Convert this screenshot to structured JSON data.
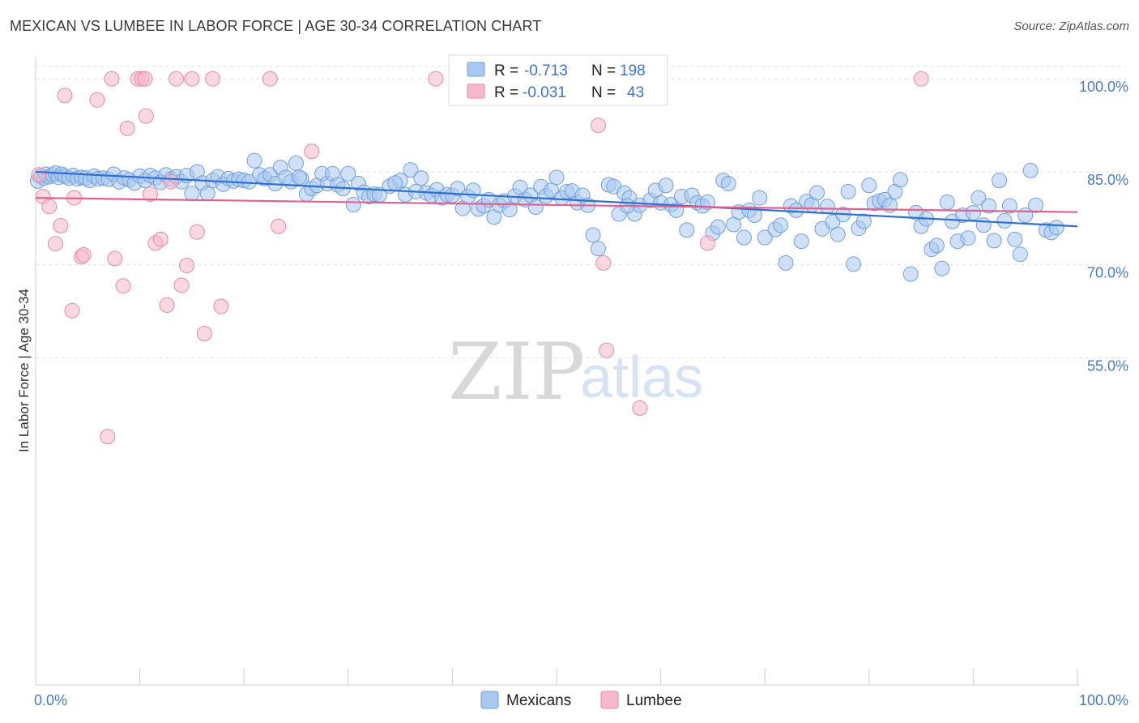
{
  "header": {
    "title": "MEXICAN VS LUMBEE IN LABOR FORCE | AGE 30-34 CORRELATION CHART",
    "source": "Source: ZipAtlas.com"
  },
  "legend": {
    "rows": [
      {
        "r_label": "R =",
        "r_value": "-0.713",
        "n_label": "N =",
        "n_value": "198",
        "color": "#a9c8f0"
      },
      {
        "r_label": "R =",
        "r_value": "-0.031",
        "n_label": "N =",
        "n_value": "43",
        "color": "#f6b8cb"
      }
    ]
  },
  "bottom_legend": {
    "items": [
      {
        "label": "Mexicans",
        "color": "#a9c8f0"
      },
      {
        "label": "Lumbee",
        "color": "#f6b8cb"
      }
    ]
  },
  "watermark": {
    "zip": "ZIP",
    "atlas": "atlas"
  },
  "chart_data": {
    "type": "scatter",
    "ylabel": "In Labor Force | Age 30-34",
    "xlim": [
      0,
      100
    ],
    "ylim": [
      40,
      102
    ],
    "x_ticks": [
      "0.0%",
      "100.0%"
    ],
    "y_ticks": [
      {
        "value": 100,
        "label": "100.0%"
      },
      {
        "value": 85,
        "label": "85.0%"
      },
      {
        "value": 70,
        "label": "70.0%"
      },
      {
        "value": 55,
        "label": "55.0%"
      }
    ],
    "grid": true,
    "series": [
      {
        "name": "Mexicans",
        "color": "#a9c8f0",
        "stroke": "#6f9fdc",
        "trend": {
          "x": [
            0,
            100
          ],
          "y": [
            85.0,
            76.2
          ],
          "color": "#2f6fd0"
        },
        "points": [
          [
            0.2,
            83.5
          ],
          [
            0.5,
            84.3
          ],
          [
            0.8,
            84.0
          ],
          [
            1.0,
            84.6
          ],
          [
            1.3,
            84.2
          ],
          [
            1.6,
            84.5
          ],
          [
            1.9,
            84.8
          ],
          [
            2.2,
            84.1
          ],
          [
            2.5,
            84.6
          ],
          [
            2.8,
            84.3
          ],
          [
            3.2,
            84.0
          ],
          [
            3.6,
            84.4
          ],
          [
            4.0,
            83.9
          ],
          [
            4.4,
            84.1
          ],
          [
            4.8,
            84.0
          ],
          [
            5.2,
            83.6
          ],
          [
            5.6,
            84.3
          ],
          [
            6.0,
            83.9
          ],
          [
            6.5,
            84.0
          ],
          [
            7.0,
            83.8
          ],
          [
            7.5,
            84.6
          ],
          [
            8.0,
            83.4
          ],
          [
            8.5,
            84.0
          ],
          [
            9.0,
            83.7
          ],
          [
            9.5,
            83.2
          ],
          [
            10.0,
            84.3
          ],
          [
            10.5,
            83.6
          ],
          [
            11.0,
            84.4
          ],
          [
            11.5,
            84.0
          ],
          [
            12.0,
            83.3
          ],
          [
            12.5,
            84.5
          ],
          [
            13.0,
            83.8
          ],
          [
            13.5,
            84.2
          ],
          [
            14.0,
            83.4
          ],
          [
            14.5,
            84.4
          ],
          [
            15.0,
            81.5
          ],
          [
            15.5,
            85.0
          ],
          [
            16.0,
            83.2
          ],
          [
            16.5,
            81.5
          ],
          [
            17.0,
            83.6
          ],
          [
            17.5,
            84.2
          ],
          [
            18.0,
            83.0
          ],
          [
            18.5,
            83.9
          ],
          [
            19.0,
            83.5
          ],
          [
            19.5,
            83.8
          ],
          [
            20.0,
            83.6
          ],
          [
            20.5,
            83.4
          ],
          [
            21.0,
            86.8
          ],
          [
            21.5,
            84.5
          ],
          [
            22.0,
            83.9
          ],
          [
            22.5,
            84.5
          ],
          [
            23.0,
            83.1
          ],
          [
            23.5,
            85.7
          ],
          [
            24.0,
            84.1
          ],
          [
            24.5,
            83.4
          ],
          [
            25.0,
            86.4
          ],
          [
            25.5,
            83.9
          ],
          [
            26.0,
            81.4
          ],
          [
            26.5,
            82.3
          ],
          [
            27.0,
            82.8
          ],
          [
            27.5,
            84.7
          ],
          [
            28.0,
            83.1
          ],
          [
            28.5,
            84.7
          ],
          [
            29.0,
            82.9
          ],
          [
            29.5,
            82.3
          ],
          [
            30.0,
            84.7
          ],
          [
            30.5,
            79.7
          ],
          [
            31.0,
            83.1
          ],
          [
            31.5,
            81.7
          ],
          [
            32.0,
            81.0
          ],
          [
            32.5,
            81.4
          ],
          [
            33.0,
            81.3
          ],
          [
            34.0,
            82.7
          ],
          [
            35.0,
            83.6
          ],
          [
            35.5,
            81.3
          ],
          [
            36.0,
            85.3
          ],
          [
            36.5,
            81.8
          ],
          [
            37.0,
            84.0
          ],
          [
            37.5,
            81.6
          ],
          [
            38.0,
            81.2
          ],
          [
            38.5,
            82.1
          ],
          [
            39.0,
            80.8
          ],
          [
            39.5,
            81.3
          ],
          [
            40.0,
            81.2
          ],
          [
            40.5,
            82.3
          ],
          [
            41.0,
            79.1
          ],
          [
            41.5,
            81.0
          ],
          [
            42.0,
            82.0
          ],
          [
            42.5,
            79.0
          ],
          [
            43.0,
            79.5
          ],
          [
            43.5,
            80.5
          ],
          [
            44.0,
            77.7
          ],
          [
            44.5,
            79.6
          ],
          [
            45.0,
            80.3
          ],
          [
            45.5,
            78.9
          ],
          [
            46.0,
            81.1
          ],
          [
            46.5,
            82.5
          ],
          [
            47.0,
            80.5
          ],
          [
            47.5,
            81.2
          ],
          [
            48.0,
            79.3
          ],
          [
            48.5,
            82.6
          ],
          [
            49.0,
            81.1
          ],
          [
            49.5,
            82.0
          ],
          [
            50.0,
            84.1
          ],
          [
            50.5,
            80.8
          ],
          [
            51.0,
            81.8
          ],
          [
            51.5,
            81.9
          ],
          [
            52.0,
            80.0
          ],
          [
            52.5,
            81.2
          ],
          [
            53.0,
            79.6
          ],
          [
            53.5,
            74.8
          ],
          [
            54.0,
            72.6
          ],
          [
            55.0,
            82.9
          ],
          [
            55.5,
            82.6
          ],
          [
            56.0,
            78.2
          ],
          [
            56.5,
            81.6
          ],
          [
            57.0,
            80.8
          ],
          [
            57.5,
            78.2
          ],
          [
            58.0,
            79.6
          ],
          [
            59.0,
            80.4
          ],
          [
            59.5,
            82.0
          ],
          [
            60.0,
            80.0
          ],
          [
            60.5,
            82.8
          ],
          [
            61.0,
            79.7
          ],
          [
            61.5,
            78.8
          ],
          [
            62.0,
            81.0
          ],
          [
            62.5,
            75.6
          ],
          [
            63.0,
            81.2
          ],
          [
            63.5,
            80.0
          ],
          [
            64.0,
            79.5
          ],
          [
            64.5,
            80.1
          ],
          [
            65.0,
            75.1
          ],
          [
            65.5,
            76.1
          ],
          [
            66.0,
            83.6
          ],
          [
            66.5,
            83.1
          ],
          [
            67.0,
            76.5
          ],
          [
            67.5,
            78.5
          ],
          [
            68.0,
            74.4
          ],
          [
            68.5,
            78.8
          ],
          [
            69.0,
            78.0
          ],
          [
            69.5,
            80.8
          ],
          [
            70.0,
            74.4
          ],
          [
            71.0,
            75.7
          ],
          [
            71.5,
            76.4
          ],
          [
            72.0,
            70.3
          ],
          [
            72.5,
            79.5
          ],
          [
            73.0,
            78.8
          ],
          [
            73.5,
            73.8
          ],
          [
            74.0,
            80.2
          ],
          [
            74.5,
            79.7
          ],
          [
            75.0,
            81.6
          ],
          [
            75.5,
            75.8
          ],
          [
            76.0,
            79.4
          ],
          [
            76.5,
            76.9
          ],
          [
            77.0,
            74.9
          ],
          [
            77.5,
            78.1
          ],
          [
            78.0,
            81.8
          ],
          [
            78.5,
            70.1
          ],
          [
            79.0,
            75.9
          ],
          [
            79.5,
            77.0
          ],
          [
            80.0,
            82.8
          ],
          [
            80.5,
            79.9
          ],
          [
            81.0,
            80.3
          ],
          [
            81.5,
            80.5
          ],
          [
            82.0,
            79.6
          ],
          [
            82.5,
            81.8
          ],
          [
            83.0,
            83.7
          ],
          [
            84.0,
            68.5
          ],
          [
            84.5,
            78.4
          ],
          [
            85.0,
            76.2
          ],
          [
            85.5,
            77.4
          ],
          [
            86.0,
            72.5
          ],
          [
            86.5,
            73.1
          ],
          [
            87.0,
            69.4
          ],
          [
            87.5,
            80.1
          ],
          [
            88.0,
            77.0
          ],
          [
            88.5,
            73.8
          ],
          [
            89.0,
            78.0
          ],
          [
            89.5,
            74.3
          ],
          [
            90.0,
            78.4
          ],
          [
            90.5,
            80.8
          ],
          [
            91.0,
            76.4
          ],
          [
            91.5,
            79.5
          ],
          [
            92.0,
            73.9
          ],
          [
            92.5,
            83.6
          ],
          [
            93.0,
            77.1
          ],
          [
            93.5,
            79.5
          ],
          [
            94.0,
            74.1
          ],
          [
            94.5,
            71.7
          ],
          [
            95.0,
            78.0
          ],
          [
            95.5,
            85.2
          ],
          [
            96.0,
            79.6
          ],
          [
            97.0,
            75.6
          ],
          [
            97.5,
            75.2
          ],
          [
            98.0,
            76.0
          ],
          [
            25.3,
            84.1
          ],
          [
            34.5,
            83.2
          ],
          [
            56.8,
            79.5
          ]
        ]
      },
      {
        "name": "Lumbee",
        "color": "#f6b8cb",
        "stroke": "#e58aa6",
        "trend": {
          "x": [
            0,
            100
          ],
          "y": [
            80.8,
            78.5
          ],
          "color": "#e0618f"
        },
        "points": [
          [
            0.3,
            84.5
          ],
          [
            0.7,
            81.0
          ],
          [
            1.3,
            79.4
          ],
          [
            1.9,
            73.4
          ],
          [
            2.4,
            76.3
          ],
          [
            2.8,
            97.3
          ],
          [
            3.5,
            62.6
          ],
          [
            3.7,
            80.8
          ],
          [
            4.4,
            71.3
          ],
          [
            4.6,
            71.6
          ],
          [
            5.9,
            96.6
          ],
          [
            6.9,
            42.3
          ],
          [
            7.3,
            100.0
          ],
          [
            7.6,
            71.0
          ],
          [
            8.4,
            66.6
          ],
          [
            8.8,
            92.0
          ],
          [
            9.8,
            100.0
          ],
          [
            10.2,
            100.0
          ],
          [
            10.5,
            100.0
          ],
          [
            10.6,
            94.0
          ],
          [
            11.0,
            81.4
          ],
          [
            11.5,
            73.5
          ],
          [
            12.0,
            74.1
          ],
          [
            12.6,
            63.5
          ],
          [
            13.0,
            83.4
          ],
          [
            13.5,
            100.0
          ],
          [
            14.0,
            66.7
          ],
          [
            14.5,
            69.9
          ],
          [
            15.0,
            100.0
          ],
          [
            15.5,
            75.3
          ],
          [
            16.2,
            58.9
          ],
          [
            17.0,
            100.0
          ],
          [
            17.8,
            63.3
          ],
          [
            22.5,
            100.0
          ],
          [
            23.3,
            76.2
          ],
          [
            26.5,
            88.3
          ],
          [
            38.4,
            100.0
          ],
          [
            54.0,
            92.5
          ],
          [
            54.5,
            70.3
          ],
          [
            54.8,
            56.2
          ],
          [
            58.0,
            46.9
          ],
          [
            64.5,
            73.5
          ],
          [
            85.0,
            100.0
          ]
        ]
      }
    ]
  }
}
